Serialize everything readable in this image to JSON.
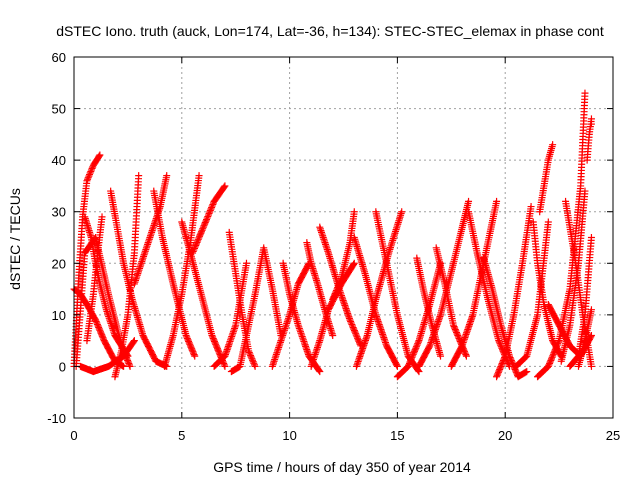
{
  "chart_data": {
    "type": "scatter",
    "title": "dSTEC Iono. truth (auck, Lon=174, Lat=-36, h=134): STEC-STEC_elemax in phase cont",
    "xlabel": "GPS time / hours of day 350 of year 2014",
    "ylabel": "dSTEC  / TECUs",
    "xlim": [
      0,
      25
    ],
    "ylim": [
      -10,
      60
    ],
    "xticks": [
      0,
      5,
      10,
      15,
      20,
      25
    ],
    "yticks": [
      -10,
      0,
      10,
      20,
      30,
      40,
      50,
      60
    ],
    "grid": true,
    "marker": "+",
    "color": "#ff0000",
    "series": [
      {
        "x": [
          0.0,
          0.2,
          0.4,
          0.6,
          0.9,
          1.2
        ],
        "y": [
          0,
          16,
          29,
          36,
          39,
          41
        ]
      },
      {
        "x": [
          0.1,
          0.5,
          1.0,
          1.6,
          2.2,
          2.6
        ],
        "y": [
          0,
          22,
          25,
          14,
          4,
          0
        ]
      },
      {
        "x": [
          0.0,
          0.3,
          0.6,
          1.0,
          1.4,
          1.9,
          2.3
        ],
        "y": [
          15,
          14,
          12,
          9,
          5,
          1,
          0
        ]
      },
      {
        "x": [
          0.5,
          0.8,
          1.0,
          1.2,
          1.5,
          1.9,
          2.5
        ],
        "y": [
          29,
          25,
          20,
          16,
          11,
          6,
          2
        ]
      },
      {
        "x": [
          0.6,
          0.9,
          1.1,
          1.3
        ],
        "y": [
          5,
          14,
          22,
          29
        ]
      },
      {
        "x": [
          0.3,
          0.9,
          1.6,
          2.3,
          2.8
        ],
        "y": [
          0,
          -1,
          0,
          2,
          5
        ]
      },
      {
        "x": [
          1.7,
          2.0,
          2.3,
          2.7,
          3.2,
          3.8,
          4.3
        ],
        "y": [
          34,
          27,
          20,
          13,
          6,
          1,
          0
        ]
      },
      {
        "x": [
          1.9,
          2.2,
          2.5,
          2.8,
          3.0
        ],
        "y": [
          -2,
          3,
          10,
          22,
          37
        ]
      },
      {
        "x": [
          2.8,
          3.2,
          3.6,
          4.0,
          4.3
        ],
        "y": [
          16,
          21,
          26,
          31,
          37
        ]
      },
      {
        "x": [
          3.7,
          4.1,
          4.6,
          5.2,
          5.6
        ],
        "y": [
          34,
          25,
          16,
          6,
          2
        ]
      },
      {
        "x": [
          4.2,
          4.6,
          5.0,
          5.4,
          5.8
        ],
        "y": [
          0,
          6,
          14,
          24,
          37
        ]
      },
      {
        "x": [
          5.0,
          5.4,
          5.9,
          6.4,
          7.0
        ],
        "y": [
          28,
          22,
          14,
          6,
          0
        ]
      },
      {
        "x": [
          5.5,
          6.0,
          6.5,
          7.0
        ],
        "y": [
          22,
          27,
          32,
          35
        ]
      },
      {
        "x": [
          6.5,
          7.0,
          7.5,
          8.0
        ],
        "y": [
          0,
          2,
          8,
          20
        ]
      },
      {
        "x": [
          7.2,
          7.5,
          7.8,
          8.1,
          8.4
        ],
        "y": [
          26,
          18,
          10,
          3,
          0
        ]
      },
      {
        "x": [
          7.3,
          7.7,
          8.0,
          8.4,
          8.8,
          9.2,
          9.6
        ],
        "y": [
          -1,
          0,
          6,
          14,
          23,
          15,
          6
        ]
      },
      {
        "x": [
          9.2,
          9.6,
          10.0,
          10.4,
          10.9
        ],
        "y": [
          0,
          5,
          10,
          16,
          20
        ]
      },
      {
        "x": [
          9.7,
          10.0,
          10.4,
          10.9,
          11.4
        ],
        "y": [
          20,
          14,
          8,
          2,
          -1
        ]
      },
      {
        "x": [
          10.8,
          11.0,
          11.3,
          11.7,
          12.0
        ],
        "y": [
          24,
          20,
          16,
          10,
          6
        ]
      },
      {
        "x": [
          11.0,
          11.4,
          11.8,
          12.4,
          13.0
        ],
        "y": [
          0,
          5,
          11,
          16,
          20
        ]
      },
      {
        "x": [
          11.4,
          11.8,
          12.3,
          12.8,
          13.3
        ],
        "y": [
          27,
          22,
          15,
          9,
          4
        ]
      },
      {
        "x": [
          12.0,
          12.4,
          12.8,
          13.0
        ],
        "y": [
          13,
          17,
          24,
          30
        ]
      },
      {
        "x": [
          13.0,
          13.5,
          14.0,
          14.5,
          15.0
        ],
        "y": [
          25,
          18,
          10,
          4,
          0
        ]
      },
      {
        "x": [
          13.1,
          13.6,
          14.0,
          14.6,
          15.2
        ],
        "y": [
          0,
          6,
          13,
          22,
          30
        ]
      },
      {
        "x": [
          14.0,
          14.5,
          15.0,
          15.5,
          16.0
        ],
        "y": [
          30,
          20,
          10,
          2,
          -1
        ]
      },
      {
        "x": [
          15.0,
          15.5,
          16.0,
          16.5,
          17.0
        ],
        "y": [
          -2,
          0,
          5,
          12,
          20
        ]
      },
      {
        "x": [
          15.9,
          16.2,
          16.6,
          17.0
        ],
        "y": [
          21,
          15,
          8,
          2
        ]
      },
      {
        "x": [
          16.0,
          16.5,
          17.0,
          17.6,
          18.3
        ],
        "y": [
          0,
          4,
          10,
          20,
          32
        ]
      },
      {
        "x": [
          16.8,
          17.2,
          17.6,
          18.2
        ],
        "y": [
          23,
          16,
          8,
          2
        ]
      },
      {
        "x": [
          17.5,
          18.0,
          18.5,
          19.0,
          19.6
        ],
        "y": [
          0,
          4,
          10,
          20,
          32
        ]
      },
      {
        "x": [
          18.3,
          18.7,
          19.2,
          19.7,
          20.2
        ],
        "y": [
          30,
          22,
          13,
          5,
          0
        ]
      },
      {
        "x": [
          19.0,
          19.4,
          19.8,
          20.2,
          20.6,
          21.0
        ],
        "y": [
          21,
          15,
          8,
          2,
          -2,
          -1
        ]
      },
      {
        "x": [
          19.6,
          20.0,
          20.4,
          20.8,
          21.2
        ],
        "y": [
          -2,
          2,
          10,
          20,
          31
        ]
      },
      {
        "x": [
          20.5,
          21.0,
          21.5,
          22.0
        ],
        "y": [
          0,
          2,
          10,
          28
        ]
      },
      {
        "x": [
          21.3,
          21.5,
          21.8,
          22.2,
          22.6
        ],
        "y": [
          28,
          20,
          12,
          5,
          2
        ]
      },
      {
        "x": [
          21.6,
          21.8,
          22.0,
          22.2
        ],
        "y": [
          30,
          35,
          40,
          43
        ]
      },
      {
        "x": [
          21.5,
          22.0,
          22.5,
          23.0,
          23.5,
          23.7
        ],
        "y": [
          -2,
          0,
          5,
          15,
          35,
          53
        ]
      },
      {
        "x": [
          22.6,
          23.0,
          23.4,
          23.7
        ],
        "y": [
          1,
          8,
          20,
          34
        ]
      },
      {
        "x": [
          23.0,
          23.4,
          23.7,
          24.0
        ],
        "y": [
          0,
          2,
          10,
          25
        ]
      },
      {
        "x": [
          23.8,
          23.9,
          24.0,
          24.0
        ],
        "y": [
          40,
          45,
          48,
          47
        ]
      },
      {
        "x": [
          22.8,
          23.2,
          23.6,
          24.0
        ],
        "y": [
          32,
          22,
          10,
          0
        ]
      },
      {
        "x": [
          23.4,
          23.7,
          24.0
        ],
        "y": [
          0,
          5,
          11
        ]
      },
      {
        "x": [
          22.0,
          22.5,
          23.0,
          23.5,
          24.0
        ],
        "y": [
          12,
          8,
          4,
          2,
          6
        ]
      }
    ]
  }
}
